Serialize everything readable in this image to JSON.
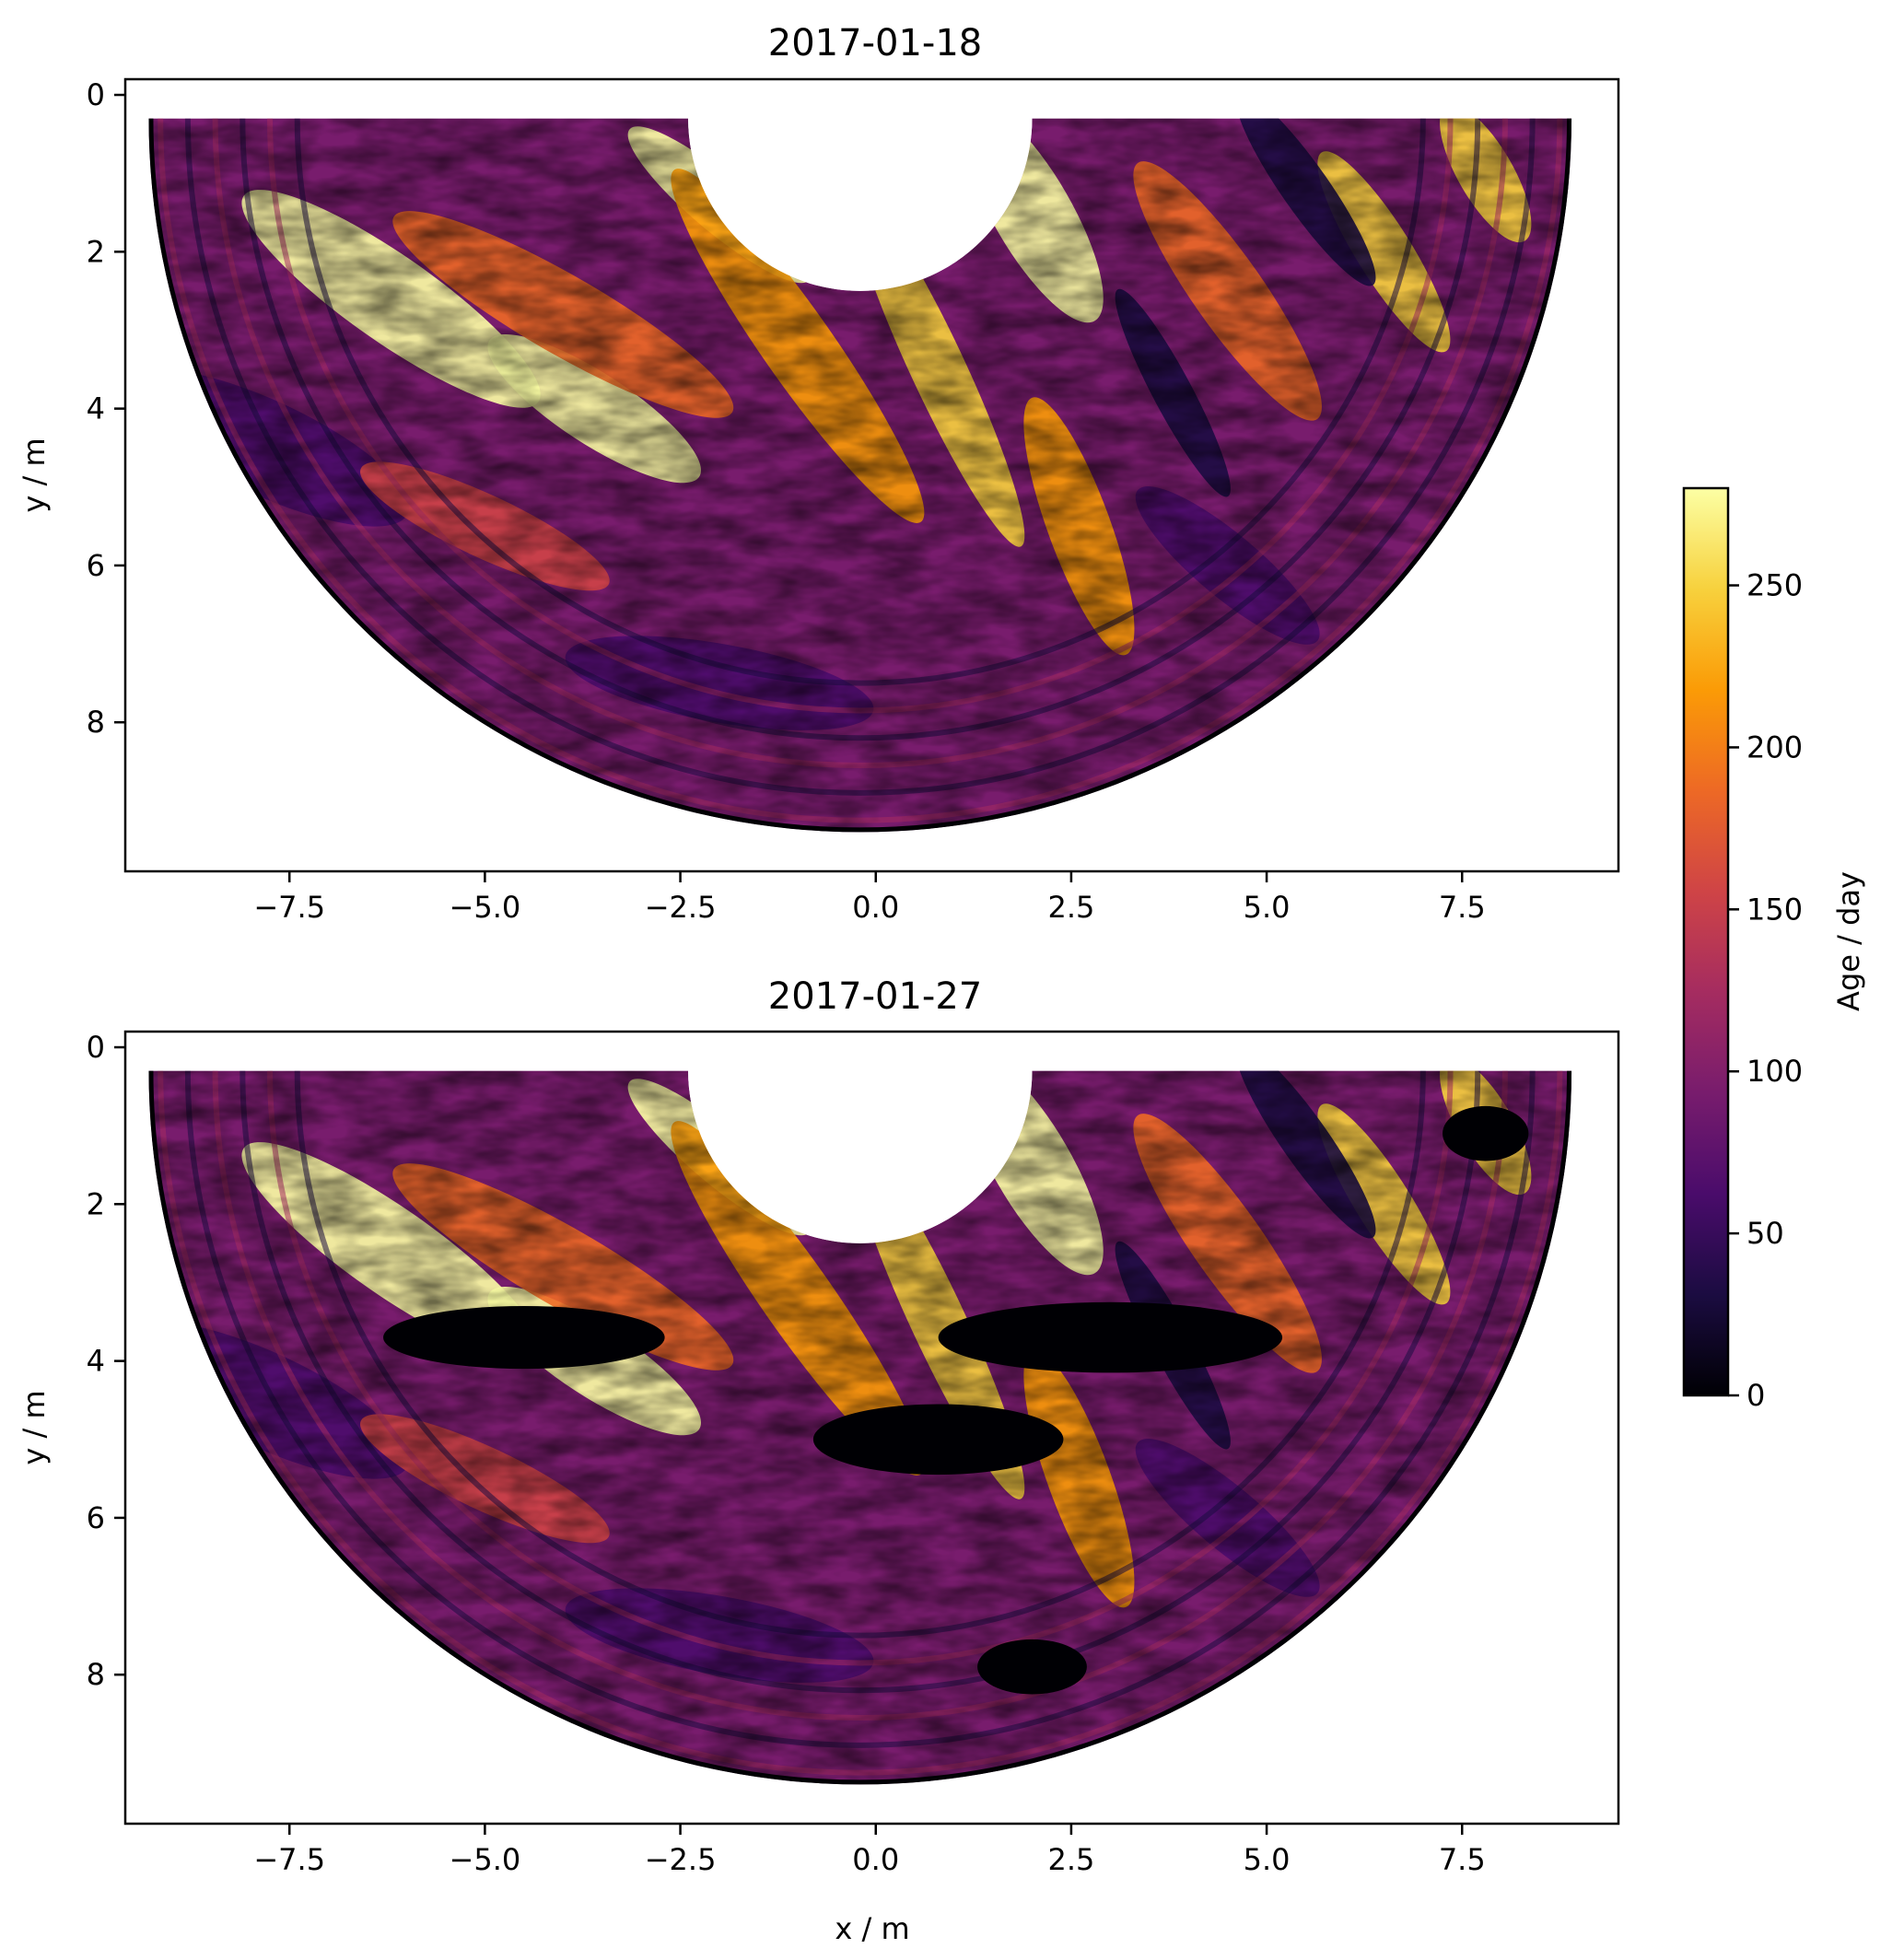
{
  "chart_data": [
    {
      "type": "heatmap",
      "title": "2017-01-18",
      "xlabel": "",
      "ylabel": "y / m",
      "xlim": [
        -9.6,
        9.5
      ],
      "ylim": [
        9.9,
        -0.2
      ],
      "y_inverted": true,
      "xticks": [
        "−7.5",
        "−5.0",
        "−2.5",
        "0.0",
        "2.5",
        "5.0",
        "7.5"
      ],
      "xtick_values": [
        -7.5,
        -5.0,
        -2.5,
        0.0,
        2.5,
        5.0,
        7.5
      ],
      "yticks": [
        "0",
        "2",
        "4",
        "6",
        "8"
      ],
      "ytick_values": [
        0,
        2,
        4,
        6,
        8
      ],
      "region": {
        "shape": "half-annulus",
        "center_x": -0.2,
        "center_y": 0,
        "inner_radius": 2.2,
        "outer_radius": 9.1
      },
      "black_patches": []
    },
    {
      "type": "heatmap",
      "title": "2017-01-27",
      "xlabel": "x / m",
      "ylabel": "y / m",
      "xlim": [
        -9.6,
        9.5
      ],
      "ylim": [
        9.9,
        -0.2
      ],
      "y_inverted": true,
      "xticks": [
        "−7.5",
        "−5.0",
        "−2.5",
        "0.0",
        "2.5",
        "5.0",
        "7.5"
      ],
      "xtick_values": [
        -7.5,
        -5.0,
        -2.5,
        0.0,
        2.5,
        5.0,
        7.5
      ],
      "yticks": [
        "0",
        "2",
        "4",
        "6",
        "8"
      ],
      "ytick_values": [
        0,
        2,
        4,
        6,
        8
      ],
      "region": {
        "shape": "half-annulus",
        "center_x": -0.2,
        "center_y": 0,
        "inner_radius": 2.2,
        "outer_radius": 9.1
      },
      "black_patches": [
        {
          "cx": -4.5,
          "cy": 3.7,
          "rx": 1.8,
          "ry": 0.4
        },
        {
          "cx": 3.0,
          "cy": 3.7,
          "rx": 2.2,
          "ry": 0.45
        },
        {
          "cx": 0.8,
          "cy": 5.0,
          "rx": 1.6,
          "ry": 0.45
        },
        {
          "cx": 7.8,
          "cy": 1.1,
          "rx": 0.55,
          "ry": 0.35
        },
        {
          "cx": 2.0,
          "cy": 7.9,
          "rx": 0.7,
          "ry": 0.35
        }
      ]
    }
  ],
  "colorbar": {
    "label": "Age / day",
    "min": 0,
    "max": 280,
    "ticks": [
      "0",
      "50",
      "100",
      "150",
      "200",
      "250"
    ],
    "tick_values": [
      0,
      50,
      100,
      150,
      200,
      250
    ],
    "colormap": "inferno",
    "colors": [
      "#000004",
      "#1b0c41",
      "#4a0c6b",
      "#781c6d",
      "#a52c60",
      "#cf4446",
      "#ed6925",
      "#fb9b06",
      "#f7d13d",
      "#fcffa4"
    ]
  }
}
